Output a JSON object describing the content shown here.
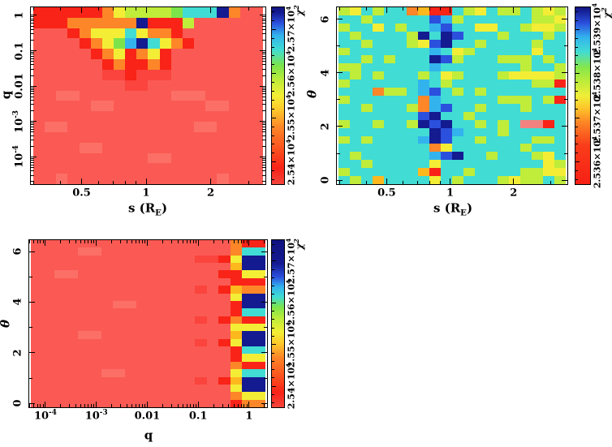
{
  "figure": {
    "background": "#ffffff",
    "description": "Three chi-squared heatmap panels over binary-lens parameters s, q, theta"
  },
  "palette": {
    "s": "#fa5a53",
    "S": "#fc6f67",
    "m": "#fa443d",
    "r": "#f92318",
    "o": "#fd8628",
    "O": "#fdb81e",
    "y": "#f3ee35",
    "g": "#c0ec3a",
    "G": "#7ce44b",
    "c": "#41dcd4",
    "C": "#33b3ed",
    "b": "#2b50dd",
    "n": "#141a90",
    "p": "#f2827f"
  },
  "chart_data": [
    {
      "id": "p1",
      "type": "heatmap",
      "title": "",
      "xlabel": "s (R_{E})",
      "ylabel": "q",
      "xaxis": {
        "scale": "log",
        "min": 0.29,
        "max": 3.6,
        "majors": [
          0.5,
          1,
          2
        ],
        "labels": [
          "0.5",
          "1",
          "2"
        ]
      },
      "yaxis": {
        "scale": "log",
        "min": 1.69e-05,
        "max": 1.69,
        "majors": [
          1,
          0.1,
          0.01,
          0.001,
          0.0001
        ],
        "labels": [
          "1",
          "0.1",
          "0.01",
          "10^{-3}",
          "10^{-4}"
        ]
      },
      "colorbar": {
        "label": "χ^{2}",
        "min": 25350,
        "max": 25750,
        "ticks": [
          25400,
          25500,
          25600,
          25700
        ],
        "tick_labels": [
          "2.54×10^{4}",
          "2.55×10^{4}",
          "2.56×10^{4}",
          "2.57×10^{4}"
        ],
        "gradient": [
          [
            "#f4453c",
            0
          ],
          [
            "#f92318",
            9
          ],
          [
            "#fb5a20",
            22
          ],
          [
            "#fd8628",
            32
          ],
          [
            "#fdc72b",
            42
          ],
          [
            "#f3ee35",
            50
          ],
          [
            "#bdec3a",
            59
          ],
          [
            "#7ce44b",
            67
          ],
          [
            "#3fdcd3",
            76
          ],
          [
            "#33b3ed",
            84
          ],
          [
            "#2b50dd",
            91
          ],
          [
            "#141a90",
            97
          ],
          [
            "#10137f",
            100
          ]
        ]
      },
      "grid": {
        "cols": 20,
        "rows": 17,
        "cells": [
          "rrrrrroyggggGcccnoss",
          "rrroooooonrrrgssssss",
          "sssroyyycyoorsssssss",
          "ssssroyGCncyorssssss",
          "sssssroyroyrssssssss",
          "ssssssrorrorssssssss",
          "ssssssmmrmmmssssssss",
          "ssssssssmmssssssssss",
          "ssSSssssssssSSSsssss",
          "sssssSSssssssssSSsss",
          "ssssssssssssssssssss",
          "sSSsssssssssssSSssss",
          "ssssssssssssssssssss",
          "ssssSSssssssssssssss",
          "ssssssssssSSssssssss",
          "ssssssssssssssssssss",
          "ssSsssssssssssssSsss"
        ]
      }
    },
    {
      "id": "p2",
      "type": "heatmap",
      "title": "",
      "xlabel": "s (R_{E})",
      "ylabel": "θ",
      "xaxis": {
        "scale": "log",
        "min": 0.29,
        "max": 3.6,
        "majors": [
          0.5,
          1,
          2
        ],
        "labels": [
          "0.5",
          "1",
          "2"
        ]
      },
      "yaxis": {
        "scale": "linear",
        "min": -0.15,
        "max": 6.45,
        "majors": [
          0,
          2,
          4,
          6
        ],
        "labels": [
          "0",
          "2",
          "4",
          "6"
        ],
        "minors": [
          1,
          3,
          5
        ]
      },
      "colorbar": {
        "label": "χ^{2}",
        "min": 25355,
        "max": 25395,
        "ticks": [
          25360,
          25370,
          25380,
          25390
        ],
        "tick_labels": [
          "2.536×10^{4}",
          "2.537×10^{4}",
          "2.538×10^{4}",
          "2.539×10^{4}"
        ],
        "gradient": [
          [
            "#f82015",
            0
          ],
          [
            "#f93d1b",
            22
          ],
          [
            "#fd8626",
            35
          ],
          [
            "#fdc62b",
            43
          ],
          [
            "#f0ee38",
            50
          ],
          [
            "#bdec3a",
            58
          ],
          [
            "#86e74b",
            66
          ],
          [
            "#41dcd4",
            75
          ],
          [
            "#33b3ed",
            83
          ],
          [
            "#2b50dd",
            91
          ],
          [
            "#10137f",
            100
          ]
        ]
      },
      "grid": {
        "cols": 20,
        "rows": 22,
        "cells": [
          "gycgccoOrrcgycggcgyg",
          "ccgcccccbCgccccccggy",
          "gccycgccCbccyyccgyyg",
          "cgccccgncnbcccgcccgc",
          "ccgcccgybnccgccccgcc",
          "gcccccccCcygcccccycc",
          "ccgcgcccnbgcccgggcgc",
          "ggccccccCcccccccgccg",
          "cgcgcccgcygcccgyyyyg",
          "gccccccCcgcccccccggr",
          "cccoggcCbcgcgccccccc",
          "gccccccoCcccccgggcgr",
          "ccgcccgoCbccgcccgccc",
          "cccccccbnccgcccccccc",
          "gccgccgnbnccgcgcpprc",
          "ccccccccnbCcccgccccc",
          "gcgccccCnbccgccccggc",
          "ccccccccoyccccccgccc",
          "cgccccccCbnccgcccgyc",
          "ccgcccccycccccccccyg",
          "gccccccOrccgccccggyy",
          "cgcOccccycgcccgyggcg"
        ]
      }
    },
    {
      "id": "p3",
      "type": "heatmap",
      "title": "",
      "xlabel": "q",
      "ylabel": "θ",
      "xaxis": {
        "scale": "log",
        "min": 4.82e-05,
        "max": 2.247,
        "majors": [
          0.0001,
          0.001,
          0.01,
          0.1,
          1
        ],
        "labels": [
          "10^{-4}",
          "10^{-3}",
          "0.01",
          "0.1",
          "1"
        ]
      },
      "yaxis": {
        "scale": "linear",
        "min": -0.15,
        "max": 6.45,
        "majors": [
          0,
          2,
          4,
          6
        ],
        "labels": [
          "0",
          "2",
          "4",
          "6"
        ],
        "minors": [
          1,
          3,
          5
        ]
      },
      "colorbar": {
        "label": "χ^{2}",
        "min": 25350,
        "max": 25750,
        "ticks": [
          25400,
          25500,
          25600,
          25700
        ],
        "tick_labels": [
          "2.54×10^{4}",
          "2.55×10^{4}",
          "2.56×10^{4}",
          "2.57×10^{4}"
        ],
        "gradient": [
          [
            "#f4453c",
            0
          ],
          [
            "#f92318",
            9
          ],
          [
            "#fb5a20",
            20
          ],
          [
            "#fd8628",
            30
          ],
          [
            "#fdc72b",
            38
          ],
          [
            "#f3ee35",
            45
          ],
          [
            "#bdec3a",
            53
          ],
          [
            "#7ce44b",
            60
          ],
          [
            "#3fdcd3",
            66
          ],
          [
            "#33b3ed",
            72
          ],
          [
            "#2b50dd",
            78
          ],
          [
            "#141a90",
            86
          ],
          [
            "#10137f",
            100
          ]
        ]
      },
      "grid": {
        "cols": 20,
        "rows": 22,
        "cells": [
          "sssssssssssssssssorr",
          "ssssSSsssssssssssocc",
          "ssssssssssssssmmrynn",
          "sssssssssssssssssOnn",
          "ssSSssssssssssssrryy",
          "sssssssssssssssssrrr",
          "ssssssssssssssmsrOoo",
          "sssssssssssssssssynn",
          "sssssssSSssssssssrnn",
          "sssssssssssssssssrcc",
          "ssssssssssssssmsrorr",
          "sssssssssssssssssyyy",
          "ssssSSsssssssssssOnn",
          "ssssssssssssssmsrynn",
          "sssssssssssssssssrcc",
          "sssssssssssssssssryy",
          "sssssssssssssssssorr",
          "ssssssSSsssssssssycc",
          "ssssssssssssssmsrOnn",
          "sssssssssssssssssynn",
          "sssssssssssssssssoyy",
          "sssssssssssssssssroo"
        ]
      }
    }
  ]
}
